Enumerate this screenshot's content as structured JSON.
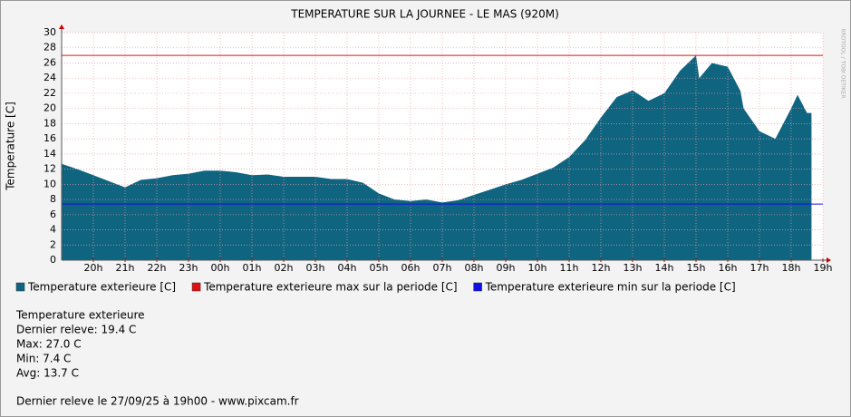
{
  "chart_data": {
    "type": "area",
    "title": "TEMPERATURE SUR LA JOURNEE - LE MAS (920M)",
    "ylabel": "Temperature [C]",
    "watermark": "RRDTOOL / TOBI OETIKER",
    "xlim": [
      0,
      24
    ],
    "xticks": [
      {
        "value": 1,
        "label": "20h"
      },
      {
        "value": 2,
        "label": "21h"
      },
      {
        "value": 3,
        "label": "22h"
      },
      {
        "value": 4,
        "label": "23h"
      },
      {
        "value": 5,
        "label": "00h"
      },
      {
        "value": 6,
        "label": "01h"
      },
      {
        "value": 7,
        "label": "02h"
      },
      {
        "value": 8,
        "label": "03h"
      },
      {
        "value": 9,
        "label": "04h"
      },
      {
        "value": 10,
        "label": "05h"
      },
      {
        "value": 11,
        "label": "06h"
      },
      {
        "value": 12,
        "label": "07h"
      },
      {
        "value": 13,
        "label": "08h"
      },
      {
        "value": 14,
        "label": "09h"
      },
      {
        "value": 15,
        "label": "10h"
      },
      {
        "value": 16,
        "label": "11h"
      },
      {
        "value": 17,
        "label": "12h"
      },
      {
        "value": 18,
        "label": "13h"
      },
      {
        "value": 19,
        "label": "14h"
      },
      {
        "value": 20,
        "label": "15h"
      },
      {
        "value": 21,
        "label": "16h"
      },
      {
        "value": 22,
        "label": "17h"
      },
      {
        "value": 23,
        "label": "18h"
      },
      {
        "value": 24,
        "label": "19h"
      }
    ],
    "ylim": [
      0,
      30
    ],
    "yticks": [
      0,
      2,
      4,
      6,
      8,
      10,
      12,
      14,
      16,
      18,
      20,
      22,
      24,
      26,
      28,
      30
    ],
    "grid": true,
    "x": [
      0,
      0.5,
      1,
      1.5,
      2,
      2.5,
      3,
      3.5,
      4,
      4.5,
      5,
      5.5,
      6,
      6.5,
      7,
      7.5,
      8,
      8.5,
      9,
      9.5,
      10,
      10.5,
      11,
      11.5,
      12,
      12.5,
      13,
      13.5,
      14,
      14.5,
      15,
      15.5,
      16,
      16.5,
      17,
      17.5,
      18,
      18.5,
      19,
      19.5,
      20,
      20.1,
      20.5,
      21,
      21.4,
      21.5,
      22,
      22.5,
      23,
      23.2,
      23.5,
      23.64
    ],
    "series": [
      {
        "name": "Temperature exterieure [C]",
        "color": "#0f6480",
        "values": [
          12.7,
          12.0,
          11.2,
          10.4,
          9.6,
          10.6,
          10.8,
          11.2,
          11.4,
          11.8,
          11.8,
          11.6,
          11.2,
          11.3,
          11.0,
          11.0,
          11.0,
          10.7,
          10.7,
          10.2,
          8.8,
          8.0,
          7.8,
          8.0,
          7.6,
          7.9,
          8.6,
          9.3,
          10.0,
          10.6,
          11.4,
          12.2,
          13.6,
          15.8,
          18.8,
          21.5,
          22.4,
          21.0,
          22.0,
          25.0,
          27.0,
          24.0,
          26.0,
          25.5,
          22.3,
          20.0,
          17.0,
          16.0,
          20.0,
          21.8,
          19.4,
          19.4
        ]
      },
      {
        "name": "Temperature exterieure max sur la periode [C]",
        "color": "#e01010",
        "constant": 27.0
      },
      {
        "name": "Temperature exterieure min sur la periode [C]",
        "color": "#1010e0",
        "constant": 7.4
      }
    ],
    "stats": [
      "Temperature exterieure",
      "Dernier releve: 19.4 C",
      "Max: 27.0 C",
      "Min: 7.4 C",
      "Avg: 13.7 C"
    ],
    "footer": "Dernier releve le 27/09/25 à 19h00 - www.pixcam.fr"
  }
}
